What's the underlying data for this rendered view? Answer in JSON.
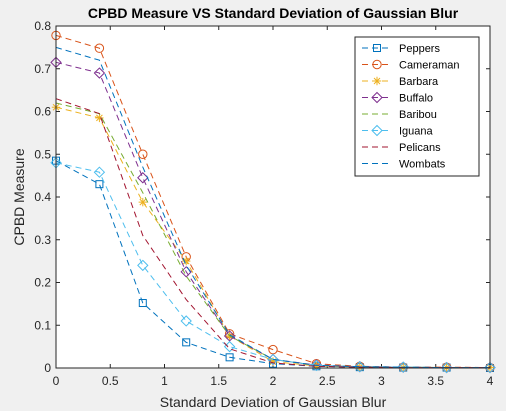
{
  "chart_data": {
    "type": "line",
    "title": "CPBD Measure VS Standard Deviation of Gaussian Blur",
    "xlabel": "Standard Deviation of Gaussian Blur",
    "ylabel": "CPBD Measure",
    "xlim": [
      0,
      4
    ],
    "ylim": [
      0,
      0.8
    ],
    "xticks": [
      0,
      0.5,
      1,
      1.5,
      2,
      2.5,
      3,
      3.5,
      4
    ],
    "xtick_labels": [
      "0",
      "0.5",
      "1",
      "1.5",
      "2",
      "2.5",
      "3",
      "3.5",
      "4"
    ],
    "yticks": [
      0,
      0.1,
      0.2,
      0.3,
      0.4,
      0.5,
      0.6,
      0.7,
      0.8
    ],
    "ytick_labels": [
      "0",
      "0.1",
      "0.2",
      "0.3",
      "0.4",
      "0.5",
      "0.6",
      "0.7",
      "0.8"
    ],
    "grid": false,
    "legend_position": "top-right",
    "x": [
      0,
      0.4,
      0.8,
      1.2,
      1.6,
      2.0,
      2.4,
      2.8,
      3.2,
      3.6,
      4.0
    ],
    "series": [
      {
        "name": "Peppers",
        "color": "#0072bd",
        "marker": "square",
        "values": [
          0.485,
          0.43,
          0.152,
          0.06,
          0.025,
          0.01,
          0.004,
          0.002,
          0.001,
          0.001,
          0.0
        ]
      },
      {
        "name": "Cameraman",
        "color": "#d95319",
        "marker": "circle",
        "values": [
          0.778,
          0.748,
          0.5,
          0.26,
          0.08,
          0.043,
          0.01,
          0.004,
          0.002,
          0.002,
          0.001
        ]
      },
      {
        "name": "Barbara",
        "color": "#edb120",
        "marker": "asterisk",
        "values": [
          0.61,
          0.585,
          0.388,
          0.25,
          0.075,
          0.015,
          0.005,
          0.002,
          0.001,
          0.001,
          0.001
        ]
      },
      {
        "name": "Buffalo",
        "color": "#7e2f8e",
        "marker": "diamond",
        "values": [
          0.715,
          0.69,
          0.445,
          0.225,
          0.075,
          0.02,
          0.007,
          0.003,
          0.002,
          0.001,
          0.001
        ]
      },
      {
        "name": "Baribou",
        "color": "#77ac30",
        "marker": "none",
        "values": [
          0.62,
          0.595,
          0.41,
          0.215,
          0.075,
          0.02,
          0.006,
          0.003,
          0.002,
          0.001,
          0.001
        ]
      },
      {
        "name": "Iguana",
        "color": "#4dbeee",
        "marker": "diamond",
        "values": [
          0.48,
          0.458,
          0.24,
          0.11,
          0.05,
          0.02,
          0.006,
          0.003,
          0.002,
          0.001,
          0.001
        ]
      },
      {
        "name": "Pelicans",
        "color": "#a2142f",
        "marker": "none",
        "values": [
          0.63,
          0.595,
          0.31,
          0.16,
          0.045,
          0.012,
          0.004,
          0.002,
          0.001,
          0.001,
          0.001
        ]
      },
      {
        "name": "Wombats",
        "color": "#0072bd",
        "marker": "none",
        "values": [
          0.75,
          0.72,
          0.47,
          0.24,
          0.078,
          0.02,
          0.006,
          0.003,
          0.002,
          0.001,
          0.001
        ]
      }
    ]
  }
}
